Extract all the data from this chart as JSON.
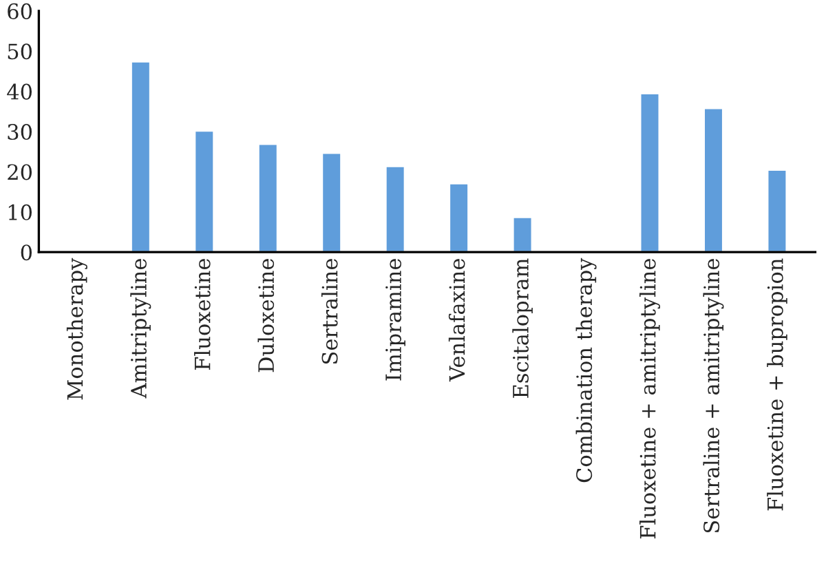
{
  "chart_data": {
    "type": "bar",
    "categories": [
      "Monotherapy",
      "Amitriptyline",
      "Fluoxetine",
      "Duloxetine",
      "Sertraline",
      "Imipramine",
      "Venlafaxine",
      "Escitalopram",
      "Combination therapy",
      "Fluoxetine + amitriptyline",
      "Sertraline + amitriptyline",
      "Fluoxetine + bupropion"
    ],
    "values": [
      null,
      47.4,
      30.2,
      26.9,
      24.7,
      21.4,
      17.1,
      8.7,
      null,
      39.5,
      35.8,
      20.5
    ],
    "color": "#5f9ddb",
    "ylim": [
      0,
      60
    ],
    "yticks": [
      0,
      10,
      20,
      30,
      40,
      50,
      60
    ],
    "grid": false,
    "legend": false
  }
}
